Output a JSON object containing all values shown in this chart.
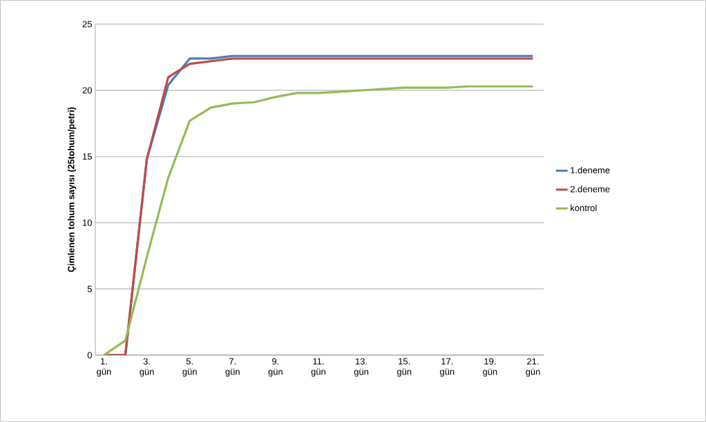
{
  "chart_data": {
    "type": "line",
    "ylabel": "Çimlenen tohum sayısı (25tohum/petri)",
    "categories": [
      "1. gün",
      null,
      "3. gün",
      null,
      "5. gün",
      null,
      "7. gün",
      null,
      "9. gün",
      null,
      "11. gün",
      null,
      "13. gün",
      null,
      "15. gün",
      null,
      "17. gün",
      null,
      "19. gün",
      null,
      "21. gün"
    ],
    "series": [
      {
        "name": "1.deneme",
        "color": "#4a7ebb",
        "values": [
          0,
          0,
          14.8,
          20.4,
          22.4,
          22.4,
          22.6,
          22.6,
          22.6,
          22.6,
          22.6,
          22.6,
          22.6,
          22.6,
          22.6,
          22.6,
          22.6,
          22.6,
          22.6,
          22.6,
          22.6
        ]
      },
      {
        "name": "2.deneme",
        "color": "#be4b48",
        "values": [
          0,
          0,
          14.8,
          21,
          22,
          22.2,
          22.4,
          22.4,
          22.4,
          22.4,
          22.4,
          22.4,
          22.4,
          22.4,
          22.4,
          22.4,
          22.4,
          22.4,
          22.4,
          22.4,
          22.4
        ]
      },
      {
        "name": "kontrol",
        "color": "#98b954",
        "values": [
          0,
          1.1,
          7.4,
          13.4,
          17.7,
          18.7,
          19.0,
          19.1,
          19.5,
          19.8,
          19.8,
          19.9,
          20.0,
          20.1,
          20.2,
          20.2,
          20.2,
          20.3,
          20.3,
          20.3,
          20.3
        ]
      }
    ],
    "ylim": [
      0,
      25
    ],
    "yticks": [
      0,
      5,
      10,
      15,
      20,
      25
    ],
    "grid": "y",
    "legend": "right",
    "marker": "none",
    "line_style": "solid"
  }
}
